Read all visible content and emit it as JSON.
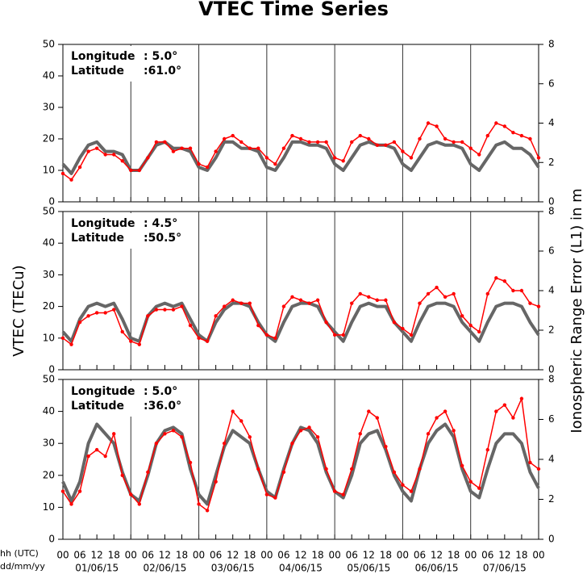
{
  "title": "VTEC Time Series",
  "y_label": "VTEC (TECu)",
  "y2_label": "Ionospheric Range Error (L1) in m",
  "x_label_lines": [
    "hh (UTC)",
    "dd/mm/yy"
  ],
  "chart_data": [
    {
      "type": "line",
      "annotation": {
        "longitude_label": "Longitude",
        "longitude": ":  5.0°",
        "latitude_label": "Latitude",
        "latitude": ":61.0°"
      },
      "x": [
        0,
        3,
        6,
        9,
        12,
        15,
        18,
        21,
        24,
        27,
        30,
        33,
        36,
        39,
        42,
        45,
        48,
        51,
        54,
        57,
        60,
        63,
        66,
        69,
        72,
        75,
        78,
        81,
        84,
        87,
        90,
        93,
        96,
        99,
        102,
        105,
        108,
        111,
        114,
        117,
        120,
        123,
        126,
        129,
        132,
        135,
        138,
        141,
        144,
        147,
        150,
        153,
        156,
        159,
        162,
        165,
        168
      ],
      "series": [
        {
          "color": "#666666",
          "values": [
            12,
            9,
            14,
            18,
            19,
            16,
            16,
            15,
            10,
            10,
            14,
            18,
            19,
            17,
            17,
            16,
            11,
            10,
            14,
            19,
            19,
            17,
            17,
            16,
            11,
            10,
            14,
            19,
            19,
            18,
            18,
            17,
            12,
            10,
            14,
            18,
            19,
            18,
            18,
            17,
            12,
            10,
            14,
            18,
            19,
            18,
            18,
            17,
            12,
            10,
            14,
            18,
            19,
            17,
            17,
            15,
            11
          ]
        },
        {
          "color": "#ff0000",
          "values": [
            9,
            7,
            11,
            16,
            17,
            15,
            15,
            13,
            10,
            10,
            14,
            19,
            19,
            16,
            17,
            17,
            12,
            11,
            16,
            20,
            21,
            19,
            17,
            17,
            14,
            12,
            17,
            21,
            20,
            19,
            19,
            19,
            14,
            13,
            19,
            21,
            20,
            18,
            18,
            19,
            16,
            14,
            20,
            25,
            24,
            20,
            19,
            19,
            17,
            15,
            21,
            25,
            24,
            22,
            21,
            20,
            14
          ]
        }
      ],
      "xlim": [
        0,
        168
      ],
      "ylim": [
        0,
        50
      ],
      "yticks": [
        0,
        10,
        20,
        30,
        40,
        50
      ],
      "y2lim": [
        0,
        8
      ],
      "y2ticks": [
        0,
        2,
        4,
        6,
        8
      ]
    },
    {
      "type": "line",
      "annotation": {
        "longitude_label": "Longitude",
        "longitude": ":  4.5°",
        "latitude_label": "Latitude",
        "latitude": ":50.5°"
      },
      "x": [
        0,
        3,
        6,
        9,
        12,
        15,
        18,
        21,
        24,
        27,
        30,
        33,
        36,
        39,
        42,
        45,
        48,
        51,
        54,
        57,
        60,
        63,
        66,
        69,
        72,
        75,
        78,
        81,
        84,
        87,
        90,
        93,
        96,
        99,
        102,
        105,
        108,
        111,
        114,
        117,
        120,
        123,
        126,
        129,
        132,
        135,
        138,
        141,
        144,
        147,
        150,
        153,
        156,
        159,
        162,
        165,
        168
      ],
      "series": [
        {
          "color": "#666666",
          "values": [
            12,
            9,
            16,
            20,
            21,
            20,
            21,
            16,
            10,
            9,
            17,
            20,
            21,
            20,
            21,
            16,
            11,
            9,
            15,
            19,
            21,
            21,
            20,
            15,
            11,
            9,
            15,
            20,
            21,
            21,
            20,
            15,
            12,
            9,
            15,
            20,
            21,
            20,
            20,
            15,
            12,
            9,
            15,
            20,
            21,
            21,
            20,
            15,
            12,
            9,
            15,
            20,
            21,
            21,
            20,
            15,
            11
          ]
        },
        {
          "color": "#ff0000",
          "values": [
            10,
            8,
            15,
            17,
            18,
            18,
            19,
            12,
            9,
            8,
            17,
            19,
            19,
            19,
            20,
            14,
            10,
            9,
            17,
            20,
            22,
            21,
            21,
            14,
            11,
            10,
            20,
            23,
            22,
            21,
            22,
            15,
            11,
            11,
            21,
            24,
            23,
            22,
            22,
            15,
            13,
            11,
            21,
            24,
            26,
            23,
            24,
            17,
            14,
            12,
            24,
            29,
            28,
            25,
            25,
            21,
            20
          ]
        }
      ],
      "xlim": [
        0,
        168
      ],
      "ylim": [
        0,
        50
      ],
      "yticks": [
        0,
        10,
        20,
        30,
        40,
        50
      ],
      "y2lim": [
        0,
        8
      ],
      "y2ticks": [
        0,
        2,
        4,
        6,
        8
      ]
    },
    {
      "type": "line",
      "annotation": {
        "longitude_label": "Longitude",
        "longitude": ":  5.0°",
        "latitude_label": "Latitude",
        "latitude": ":36.0°"
      },
      "x": [
        0,
        3,
        6,
        9,
        12,
        15,
        18,
        21,
        24,
        27,
        30,
        33,
        36,
        39,
        42,
        45,
        48,
        51,
        54,
        57,
        60,
        63,
        66,
        69,
        72,
        75,
        78,
        81,
        84,
        87,
        90,
        93,
        96,
        99,
        102,
        105,
        108,
        111,
        114,
        117,
        120,
        123,
        126,
        129,
        132,
        135,
        138,
        141,
        144,
        147,
        150,
        153,
        156,
        159,
        162,
        165,
        168
      ],
      "series": [
        {
          "color": "#666666",
          "values": [
            18,
            12,
            18,
            30,
            36,
            33,
            30,
            21,
            14,
            12,
            20,
            30,
            34,
            35,
            33,
            22,
            14,
            11,
            20,
            29,
            34,
            32,
            30,
            22,
            15,
            13,
            22,
            30,
            35,
            34,
            30,
            21,
            15,
            13,
            20,
            30,
            33,
            34,
            28,
            20,
            15,
            12,
            22,
            30,
            34,
            36,
            32,
            22,
            15,
            13,
            22,
            30,
            33,
            33,
            30,
            21,
            16
          ]
        },
        {
          "color": "#ff0000",
          "values": [
            15,
            11,
            15,
            26,
            28,
            26,
            33,
            20,
            14,
            11,
            21,
            30,
            33,
            34,
            32,
            24,
            11,
            9,
            18,
            30,
            40,
            37,
            32,
            22,
            14,
            13,
            21,
            30,
            34,
            35,
            32,
            22,
            15,
            14,
            22,
            33,
            40,
            38,
            29,
            21,
            17,
            15,
            22,
            33,
            38,
            40,
            34,
            23,
            18,
            16,
            28,
            40,
            42,
            38,
            44,
            24,
            22
          ]
        }
      ],
      "xlim": [
        0,
        168
      ],
      "ylim": [
        0,
        50
      ],
      "yticks": [
        0,
        10,
        20,
        30,
        40,
        50
      ],
      "y2lim": [
        0,
        8
      ],
      "y2ticks": [
        0,
        2,
        4,
        6,
        8
      ],
      "xticks": [
        {
          "value": 0,
          "label": "00"
        },
        {
          "value": 6,
          "label": "06"
        },
        {
          "value": 12,
          "label": "12"
        },
        {
          "value": 18,
          "label": "18"
        },
        {
          "value": 24,
          "label": "00"
        },
        {
          "value": 30,
          "label": "06"
        },
        {
          "value": 36,
          "label": "12"
        },
        {
          "value": 42,
          "label": "18"
        },
        {
          "value": 48,
          "label": "00"
        },
        {
          "value": 54,
          "label": "06"
        },
        {
          "value": 60,
          "label": "12"
        },
        {
          "value": 66,
          "label": "18"
        },
        {
          "value": 72,
          "label": "00"
        },
        {
          "value": 78,
          "label": "06"
        },
        {
          "value": 84,
          "label": "12"
        },
        {
          "value": 90,
          "label": "18"
        },
        {
          "value": 96,
          "label": "00"
        },
        {
          "value": 102,
          "label": "06"
        },
        {
          "value": 108,
          "label": "12"
        },
        {
          "value": 114,
          "label": "18"
        },
        {
          "value": 120,
          "label": "00"
        },
        {
          "value": 126,
          "label": "06"
        },
        {
          "value": 132,
          "label": "12"
        },
        {
          "value": 138,
          "label": "18"
        },
        {
          "value": 144,
          "label": "00"
        },
        {
          "value": 150,
          "label": "06"
        },
        {
          "value": 156,
          "label": "12"
        },
        {
          "value": 162,
          "label": "18"
        },
        {
          "value": 168,
          "label": "00"
        }
      ],
      "x_date_labels": [
        {
          "value": 12,
          "label": "01/06/15"
        },
        {
          "value": 36,
          "label": "02/06/15"
        },
        {
          "value": 60,
          "label": "03/06/15"
        },
        {
          "value": 84,
          "label": "04/06/15"
        },
        {
          "value": 108,
          "label": "05/06/15"
        },
        {
          "value": 132,
          "label": "06/06/15"
        },
        {
          "value": 156,
          "label": "07/06/15"
        }
      ],
      "day_lines": [
        24,
        48,
        72,
        96,
        120,
        144
      ]
    }
  ]
}
